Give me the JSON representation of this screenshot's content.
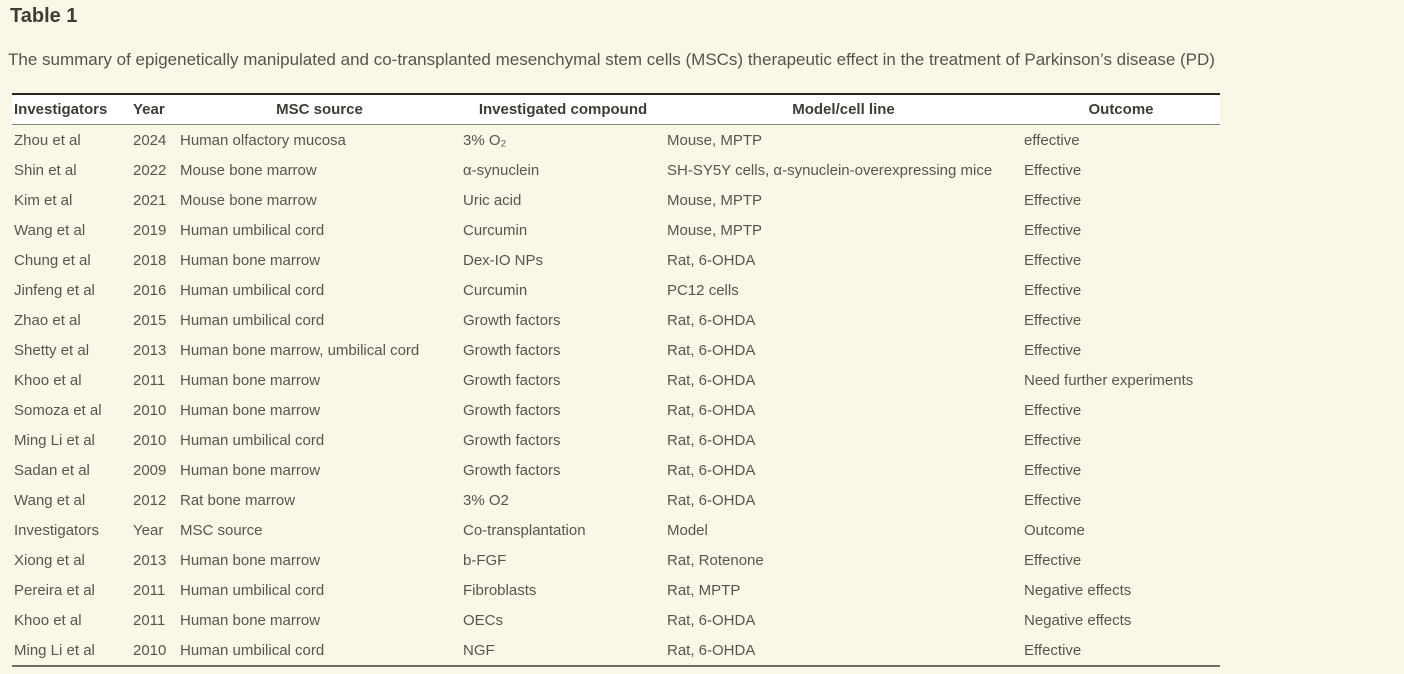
{
  "page": {
    "title": "Table 1",
    "caption": "The summary of epigenetically manipulated and co-transplanted mesenchymal stem cells (MSCs) therapeutic effect in the treatment of Parkinson’s disease (PD)"
  },
  "colors": {
    "page_background": "#FBF7E6",
    "header_row_background": "#FFFFFF",
    "title_text": "#3E3D33",
    "body_text": "#57564C",
    "border_dark": "#262622",
    "border_light": "#8A8A82"
  },
  "table": {
    "columns": [
      "Investigators",
      "Year",
      "MSC source",
      "Investigated compound",
      "Model/cell line",
      "Outcome"
    ],
    "column_keys": [
      "investigators",
      "year",
      "msc-source",
      "investigated-compound",
      "model-cell-line",
      "outcome"
    ],
    "rows": [
      [
        "Zhou et al",
        "2024",
        "Human olfactory mucosa",
        "3% O₂",
        "Mouse, MPTP",
        "effective"
      ],
      [
        "Shin et al",
        "2022",
        "Mouse bone marrow",
        "α-synuclein",
        "SH-SY5Y cells, α-synuclein-overexpressing mice",
        "Effective"
      ],
      [
        "Kim et al",
        "2021",
        "Mouse bone marrow",
        "Uric acid",
        "Mouse, MPTP",
        "Effective"
      ],
      [
        "Wang et al",
        "2019",
        "Human umbilical cord",
        "Curcumin",
        "Mouse, MPTP",
        "Effective"
      ],
      [
        "Chung et al",
        "2018",
        "Human bone marrow",
        "Dex-IO NPs",
        "Rat, 6-OHDA",
        "Effective"
      ],
      [
        "Jinfeng et al",
        "2016",
        "Human umbilical cord",
        "Curcumin",
        "PC12 cells",
        "Effective"
      ],
      [
        "Zhao et al",
        "2015",
        "Human umbilical cord",
        "Growth factors",
        "Rat, 6-OHDA",
        "Effective"
      ],
      [
        "Shetty et al",
        "2013",
        "Human bone marrow, umbilical cord",
        "Growth factors",
        "Rat, 6-OHDA",
        "Effective"
      ],
      [
        "Khoo et al",
        "2011",
        "Human bone marrow",
        "Growth factors",
        "Rat, 6-OHDA",
        "Need further experiments"
      ],
      [
        "Somoza et al",
        "2010",
        "Human bone marrow",
        "Growth factors",
        "Rat, 6-OHDA",
        "Effective"
      ],
      [
        "Ming Li et al",
        "2010",
        "Human umbilical cord",
        "Growth factors",
        "Rat, 6-OHDA",
        "Effective"
      ],
      [
        "Sadan et al",
        "2009",
        "Human bone marrow",
        "Growth factors",
        "Rat, 6-OHDA",
        "Effective"
      ],
      [
        "Wang et al",
        "2012",
        "Rat bone marrow",
        "3% O2",
        "Rat, 6-OHDA",
        "Effective"
      ],
      [
        "Investigators",
        "Year",
        "MSC source",
        "Co-transplantation",
        "Model",
        "Outcome"
      ],
      [
        "Xiong et al",
        "2013",
        "Human bone marrow",
        "b-FGF",
        "Rat, Rotenone",
        "Effective"
      ],
      [
        "Pereira et al",
        "2011",
        "Human umbilical cord",
        "Fibroblasts",
        "Rat, MPTP",
        "Negative effects"
      ],
      [
        "Khoo et al",
        "2011",
        "Human bone marrow",
        "OECs",
        "Rat, 6-OHDA",
        "Negative effects"
      ],
      [
        "Ming Li et al",
        "2010",
        "Human umbilical cord",
        "NGF",
        "Rat, 6-OHDA",
        "Effective"
      ]
    ]
  }
}
